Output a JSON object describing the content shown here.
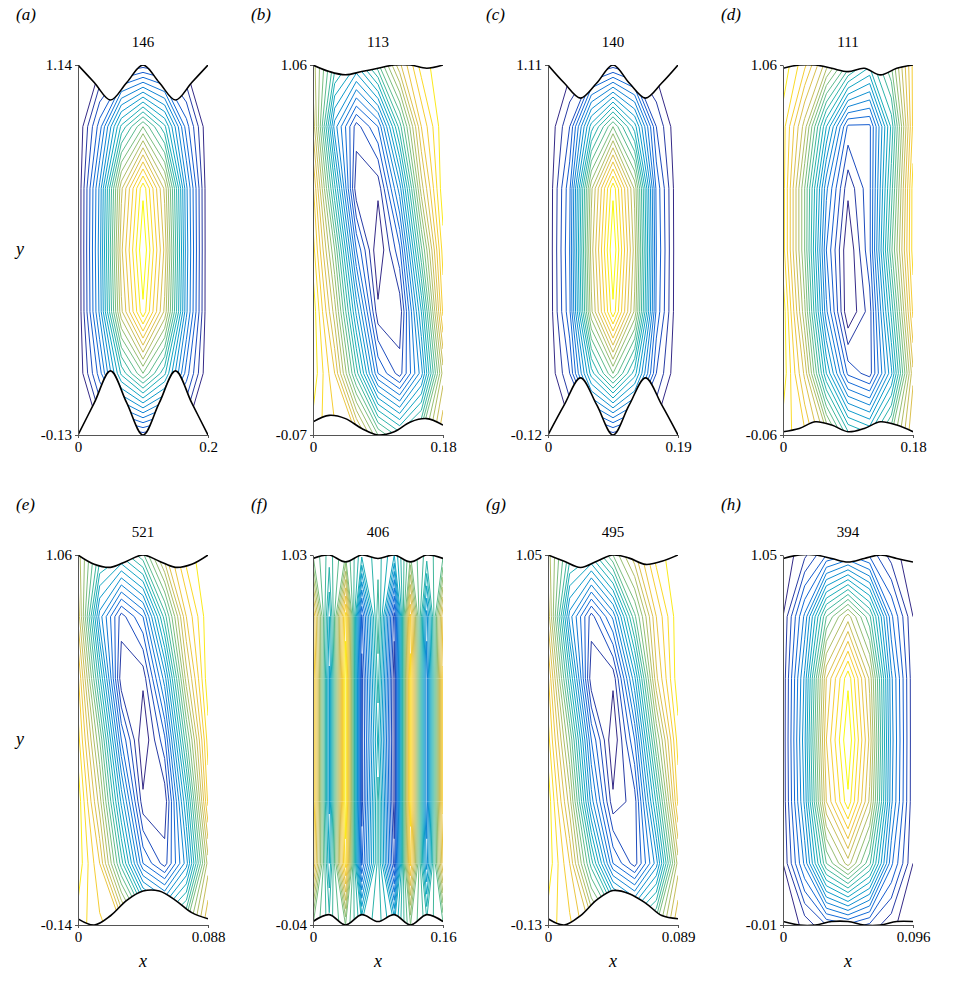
{
  "chart_data": [
    {
      "type": "contour",
      "letter": "(a)",
      "title": "146",
      "y_label": "y",
      "xlim": [
        0,
        0.2
      ],
      "xticks": [
        0,
        0.2
      ],
      "ylim": [
        -0.13,
        1.14
      ],
      "yticks": [
        -0.13,
        1.14
      ],
      "wall_x": [
        0,
        0.025,
        0.05,
        0.075,
        0.1,
        0.125,
        0.15,
        0.175,
        0.2
      ],
      "top_wall": [
        1.14,
        1.08,
        1.02,
        1.08,
        1.14,
        1.08,
        1.02,
        1.08,
        1.14
      ],
      "bottom_wall": [
        -0.13,
        -0.02,
        0.09,
        -0.02,
        -0.13,
        -0.02,
        0.09,
        -0.02,
        -0.13
      ],
      "levels": [
        0.04,
        0.08,
        0.12,
        0.16,
        0.2,
        0.24,
        0.28,
        0.32,
        0.36,
        0.4,
        0.44,
        0.48,
        0.52,
        0.56,
        0.6,
        0.64,
        0.68,
        0.72,
        0.76,
        0.8,
        0.84,
        0.88,
        0.92,
        0.96
      ],
      "psi": [
        [
          0,
          0.03,
          0.08,
          0.1,
          0.08,
          0.03,
          0
        ],
        [
          0,
          0.18,
          0.45,
          0.6,
          0.45,
          0.18,
          0
        ],
        [
          0,
          0.29,
          0.71,
          0.95,
          0.71,
          0.29,
          0
        ],
        [
          0,
          0.3,
          0.75,
          1,
          0.75,
          0.3,
          0
        ],
        [
          0,
          0.29,
          0.71,
          0.95,
          0.71,
          0.29,
          0
        ],
        [
          0,
          0.18,
          0.45,
          0.6,
          0.45,
          0.18,
          0
        ],
        [
          0,
          0.03,
          0.08,
          0.1,
          0.08,
          0.03,
          0
        ]
      ]
    },
    {
      "type": "contour",
      "letter": "(b)",
      "title": "113",
      "xlim": [
        0,
        0.18
      ],
      "xticks": [
        0,
        0.18
      ],
      "ylim": [
        -0.07,
        1.06
      ],
      "yticks": [
        -0.07,
        1.06
      ],
      "wall_x": [
        0,
        0.0225,
        0.045,
        0.0675,
        0.09,
        0.1125,
        0.135,
        0.1575,
        0.18
      ],
      "top_wall": [
        1.06,
        1.04,
        1.03,
        1.04,
        1.05,
        1.06,
        1.06,
        1.05,
        1.06
      ],
      "bottom_wall": [
        -0.03,
        -0.01,
        -0.02,
        -0.05,
        -0.07,
        -0.06,
        -0.03,
        -0.02,
        -0.04
      ],
      "levels": [
        0.04,
        0.08,
        0.12,
        0.16,
        0.2,
        0.24,
        0.28,
        0.32,
        0.36,
        0.4,
        0.44,
        0.48,
        0.52,
        0.56,
        0.6,
        0.64,
        0.68,
        0.72,
        0.76,
        0.8,
        0.84,
        0.88,
        0.92,
        0.96
      ],
      "psi": [
        [
          0.9,
          0.85,
          0.8,
          0.6,
          0.5,
          0.6,
          0.8
        ],
        [
          0.95,
          0.8,
          0.5,
          0.2,
          0.1,
          0.3,
          0.7
        ],
        [
          0.95,
          0.7,
          0.35,
          0.05,
          0.05,
          0.4,
          0.85
        ],
        [
          0.9,
          0.6,
          0.2,
          0,
          0.15,
          0.55,
          0.9
        ],
        [
          0.85,
          0.45,
          0.05,
          0.05,
          0.3,
          0.7,
          0.95
        ],
        [
          0.75,
          0.3,
          0.1,
          0.2,
          0.5,
          0.8,
          0.95
        ],
        [
          0.7,
          0.5,
          0.4,
          0.55,
          0.75,
          0.9,
          0.95
        ]
      ]
    },
    {
      "type": "contour",
      "letter": "(c)",
      "title": "140",
      "xlim": [
        0,
        0.19
      ],
      "xticks": [
        0,
        0.19
      ],
      "ylim": [
        -0.12,
        1.11
      ],
      "yticks": [
        -0.12,
        1.11
      ],
      "wall_x": [
        0,
        0.02375,
        0.0475,
        0.07125,
        0.095,
        0.11875,
        0.1425,
        0.16625,
        0.19
      ],
      "top_wall": [
        1.11,
        1.05,
        1,
        1.05,
        1.11,
        1.05,
        1,
        1.05,
        1.11
      ],
      "bottom_wall": [
        -0.12,
        -0.02,
        0.07,
        -0.02,
        -0.12,
        -0.02,
        0.07,
        -0.02,
        -0.12
      ],
      "levels": [
        0.04,
        0.08,
        0.12,
        0.16,
        0.2,
        0.24,
        0.28,
        0.32,
        0.36,
        0.4,
        0.44,
        0.48,
        0.52,
        0.56,
        0.6,
        0.64,
        0.68,
        0.72,
        0.76,
        0.8,
        0.84,
        0.88,
        0.92,
        0.96
      ],
      "psi": [
        [
          0,
          0.02,
          0.07,
          0.1,
          0.07,
          0.02,
          0
        ],
        [
          0,
          0.12,
          0.42,
          0.6,
          0.42,
          0.12,
          0
        ],
        [
          0,
          0.19,
          0.67,
          0.95,
          0.67,
          0.19,
          0
        ],
        [
          0,
          0.2,
          0.7,
          1,
          0.7,
          0.2,
          0
        ],
        [
          0,
          0.19,
          0.67,
          0.95,
          0.67,
          0.19,
          0
        ],
        [
          0,
          0.12,
          0.42,
          0.6,
          0.42,
          0.12,
          0
        ],
        [
          0,
          0.02,
          0.07,
          0.1,
          0.07,
          0.02,
          0
        ]
      ]
    },
    {
      "type": "contour",
      "letter": "(d)",
      "title": "111",
      "xlim": [
        0,
        0.18
      ],
      "xticks": [
        0,
        0.18
      ],
      "ylim": [
        -0.06,
        1.06
      ],
      "yticks": [
        -0.06,
        1.06
      ],
      "wall_x": [
        0,
        0.0225,
        0.045,
        0.0675,
        0.09,
        0.1125,
        0.135,
        0.1575,
        0.18
      ],
      "top_wall": [
        1.05,
        1.06,
        1.06,
        1.05,
        1.04,
        1.05,
        1.03,
        1.05,
        1.06
      ],
      "bottom_wall": [
        -0.05,
        -0.04,
        -0.02,
        -0.03,
        -0.05,
        -0.04,
        -0.02,
        -0.03,
        -0.05
      ],
      "levels": [
        0.04,
        0.08,
        0.12,
        0.16,
        0.2,
        0.24,
        0.28,
        0.32,
        0.36,
        0.4,
        0.44,
        0.48,
        0.52,
        0.56,
        0.6,
        0.64,
        0.68,
        0.72,
        0.76,
        0.8,
        0.84,
        0.88,
        0.92,
        0.96
      ],
      "psi": [
        [
          0.9,
          0.85,
          0.7,
          0.5,
          0.45,
          0.6,
          0.8
        ],
        [
          0.95,
          0.75,
          0.4,
          0.15,
          0.1,
          0.35,
          0.75
        ],
        [
          0.95,
          0.65,
          0.25,
          0,
          0.1,
          0.45,
          0.85
        ],
        [
          0.9,
          0.6,
          0.2,
          0,
          0.15,
          0.55,
          0.9
        ],
        [
          0.9,
          0.6,
          0.25,
          0.05,
          0.15,
          0.5,
          0.9
        ],
        [
          0.9,
          0.7,
          0.4,
          0.15,
          0.15,
          0.45,
          0.85
        ],
        [
          0.95,
          0.85,
          0.7,
          0.55,
          0.45,
          0.6,
          0.85
        ]
      ]
    },
    {
      "type": "contour",
      "letter": "(e)",
      "title": "521",
      "x_label": "x",
      "y_label": "y",
      "xlim": [
        0,
        0.088
      ],
      "xticks": [
        0,
        0.088
      ],
      "ylim": [
        -0.14,
        1.06
      ],
      "yticks": [
        -0.14,
        1.06
      ],
      "wall_x": [
        0,
        0.011,
        0.022,
        0.033,
        0.044,
        0.055,
        0.066,
        0.077,
        0.088
      ],
      "top_wall": [
        1.06,
        1.03,
        1.02,
        1.04,
        1.06,
        1.04,
        1.02,
        1.03,
        1.06
      ],
      "bottom_wall": [
        -0.12,
        -0.14,
        -0.11,
        -0.06,
        -0.03,
        -0.03,
        -0.06,
        -0.1,
        -0.12
      ],
      "levels": [
        0.04,
        0.08,
        0.12,
        0.16,
        0.2,
        0.24,
        0.28,
        0.32,
        0.36,
        0.4,
        0.44,
        0.48,
        0.52,
        0.56,
        0.6,
        0.64,
        0.68,
        0.72,
        0.76,
        0.8,
        0.84,
        0.88,
        0.92,
        0.96
      ],
      "psi": [
        [
          0.9,
          0.85,
          0.8,
          0.6,
          0.5,
          0.6,
          0.8
        ],
        [
          0.95,
          0.8,
          0.5,
          0.2,
          0.1,
          0.3,
          0.7
        ],
        [
          0.95,
          0.7,
          0.35,
          0.05,
          0.05,
          0.4,
          0.85
        ],
        [
          0.9,
          0.6,
          0.2,
          0,
          0.15,
          0.55,
          0.9
        ],
        [
          0.85,
          0.45,
          0.05,
          0.05,
          0.3,
          0.7,
          0.95
        ],
        [
          0.75,
          0.3,
          0.1,
          0.2,
          0.5,
          0.8,
          0.95
        ],
        [
          0.7,
          0.5,
          0.45,
          0.55,
          0.75,
          0.9,
          0.95
        ]
      ]
    },
    {
      "type": "contour",
      "letter": "(f)",
      "title": "406",
      "x_label": "x",
      "xlim": [
        0,
        0.16
      ],
      "xticks": [
        0,
        0.16
      ],
      "ylim": [
        -0.04,
        1.03
      ],
      "yticks": [
        -0.04,
        1.03
      ],
      "wall_x": [
        0,
        0.02,
        0.04,
        0.06,
        0.08,
        0.1,
        0.12,
        0.14,
        0.16
      ],
      "top_wall": [
        1.02,
        1.03,
        1.01,
        1.03,
        1.02,
        1.03,
        1.01,
        1.03,
        1.02
      ],
      "bottom_wall": [
        -0.03,
        -0.01,
        -0.04,
        -0.01,
        -0.03,
        -0.01,
        -0.04,
        -0.01,
        -0.03
      ],
      "levels": [
        0.04,
        0.08,
        0.12,
        0.16,
        0.2,
        0.24,
        0.28,
        0.32,
        0.36,
        0.4,
        0.44,
        0.48,
        0.52,
        0.56,
        0.6,
        0.64,
        0.68,
        0.72,
        0.76,
        0.8,
        0.84,
        0.88,
        0.92,
        0.96
      ],
      "psi": [
        [
          0.6,
          0.5,
          0.6,
          0.45,
          0.5,
          0.4,
          0.6,
          0.5,
          0.55
        ],
        [
          0.85,
          0.4,
          0.9,
          0.15,
          0.5,
          0.1,
          0.85,
          0.3,
          0.8
        ],
        [
          0.9,
          0.35,
          0.95,
          0.1,
          0.5,
          0.05,
          0.9,
          0.25,
          0.85
        ],
        [
          0.9,
          0.35,
          0.95,
          0.1,
          0.45,
          0.05,
          0.9,
          0.25,
          0.85
        ],
        [
          0.9,
          0.35,
          0.95,
          0.1,
          0.5,
          0.05,
          0.9,
          0.25,
          0.85
        ],
        [
          0.85,
          0.4,
          0.9,
          0.15,
          0.55,
          0.1,
          0.85,
          0.3,
          0.8
        ],
        [
          0.6,
          0.5,
          0.6,
          0.45,
          0.5,
          0.4,
          0.6,
          0.5,
          0.55
        ]
      ]
    },
    {
      "type": "contour",
      "letter": "(g)",
      "title": "495",
      "x_label": "x",
      "xlim": [
        0,
        0.089
      ],
      "xticks": [
        0,
        0.089
      ],
      "ylim": [
        -0.13,
        1.05
      ],
      "yticks": [
        -0.13,
        1.05
      ],
      "wall_x": [
        0,
        0.0111,
        0.0223,
        0.0334,
        0.0445,
        0.0556,
        0.0668,
        0.0779,
        0.089
      ],
      "top_wall": [
        1.05,
        1.03,
        1.01,
        1.03,
        1.05,
        1.04,
        1.02,
        1.03,
        1.05
      ],
      "bottom_wall": [
        -0.11,
        -0.13,
        -0.1,
        -0.05,
        -0.02,
        -0.03,
        -0.06,
        -0.1,
        -0.11
      ],
      "levels": [
        0.04,
        0.08,
        0.12,
        0.16,
        0.2,
        0.24,
        0.28,
        0.32,
        0.36,
        0.4,
        0.44,
        0.48,
        0.52,
        0.56,
        0.6,
        0.64,
        0.68,
        0.72,
        0.76,
        0.8,
        0.84,
        0.88,
        0.92,
        0.96
      ],
      "psi": [
        [
          0.9,
          0.85,
          0.75,
          0.6,
          0.5,
          0.6,
          0.8
        ],
        [
          0.95,
          0.8,
          0.5,
          0.2,
          0.1,
          0.3,
          0.7
        ],
        [
          0.95,
          0.7,
          0.3,
          0.05,
          0.1,
          0.45,
          0.85
        ],
        [
          0.9,
          0.6,
          0.2,
          0,
          0.2,
          0.6,
          0.9
        ],
        [
          0.85,
          0.45,
          0.05,
          0.05,
          0.35,
          0.75,
          0.95
        ],
        [
          0.75,
          0.3,
          0.1,
          0.25,
          0.55,
          0.8,
          0.95
        ],
        [
          0.7,
          0.5,
          0.45,
          0.6,
          0.75,
          0.9,
          0.95
        ]
      ]
    },
    {
      "type": "contour",
      "letter": "(h)",
      "title": "394",
      "x_label": "x",
      "xlim": [
        0,
        0.096
      ],
      "xticks": [
        0,
        0.096
      ],
      "ylim": [
        -0.01,
        1.05
      ],
      "yticks": [
        -0.01,
        1.05
      ],
      "wall_x": [
        0,
        0.012,
        0.024,
        0.036,
        0.048,
        0.06,
        0.072,
        0.084,
        0.096
      ],
      "top_wall": [
        1.04,
        1.05,
        1.05,
        1.04,
        1.03,
        1.04,
        1.05,
        1.04,
        1.03
      ],
      "bottom_wall": [
        0,
        -0.01,
        -0.01,
        0,
        0,
        -0.01,
        -0.01,
        0,
        0
      ],
      "levels": [
        0.04,
        0.08,
        0.12,
        0.16,
        0.2,
        0.24,
        0.28,
        0.32,
        0.36,
        0.4,
        0.44,
        0.48,
        0.52,
        0.56,
        0.6,
        0.64,
        0.68,
        0.72,
        0.76,
        0.8,
        0.84,
        0.88,
        0.92,
        0.96
      ],
      "psi": [
        [
          0.01,
          0.05,
          0.12,
          0.15,
          0.11,
          0.05,
          0.01
        ],
        [
          0.04,
          0.25,
          0.56,
          0.7,
          0.53,
          0.21,
          0.04
        ],
        [
          0.05,
          0.33,
          0.76,
          0.95,
          0.71,
          0.29,
          0.05
        ],
        [
          0.05,
          0.35,
          0.8,
          1,
          0.75,
          0.3,
          0.05
        ],
        [
          0.05,
          0.33,
          0.76,
          0.95,
          0.71,
          0.29,
          0.05
        ],
        [
          0.04,
          0.25,
          0.56,
          0.7,
          0.53,
          0.21,
          0.04
        ],
        [
          0.01,
          0.07,
          0.16,
          0.2,
          0.15,
          0.06,
          0.01
        ]
      ]
    }
  ]
}
